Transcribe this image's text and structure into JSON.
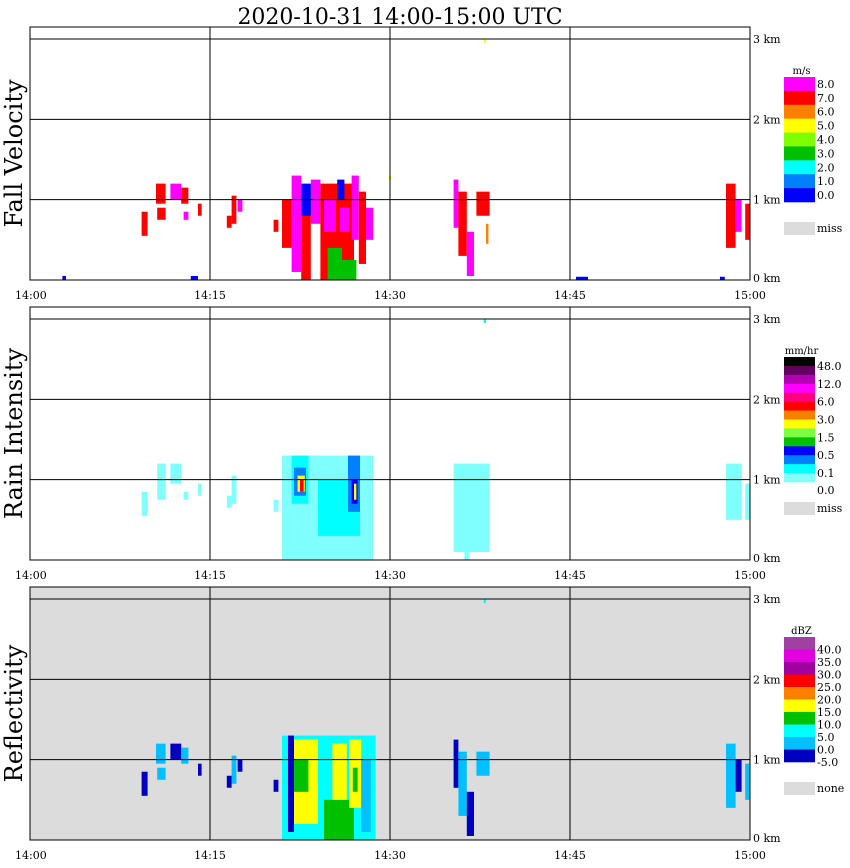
{
  "chart_data": {
    "type": "heatmap",
    "title": "2020-10-31   14:00-15:00 UTC",
    "x_ticks": [
      "14:00",
      "14:15",
      "14:30",
      "14:45",
      "15:00"
    ],
    "x_range_minutes": [
      0,
      60
    ],
    "y_ticks": [
      "0 km",
      "1 km",
      "2 km",
      "3 km"
    ],
    "y_range_km": [
      0,
      3.15
    ],
    "grid": true,
    "panels": [
      {
        "name": "fall-velocity",
        "ylabel": "Fall Velocity",
        "unit": "m/s",
        "background": "#ffffff",
        "legend_labels": [
          "8.0",
          "7.0",
          "6.0",
          "5.0",
          "4.0",
          "3.0",
          "2.0",
          "1.0",
          "0.0"
        ],
        "legend_colors": [
          "#ff00ff",
          "#ff0000",
          "#ff8000",
          "#ffff00",
          "#80ff00",
          "#00c000",
          "#00ffff",
          "#0080ff",
          "#0000ff"
        ],
        "missing_label": "miss",
        "cells": [
          [
            10.5,
            11.3,
            0.95,
            1.2,
            1
          ],
          [
            11.7,
            12.6,
            1.0,
            1.2,
            0
          ],
          [
            12.6,
            13.2,
            0.95,
            1.15,
            1
          ],
          [
            9.3,
            9.8,
            0.55,
            0.85,
            1
          ],
          [
            10.6,
            11.3,
            0.75,
            0.9,
            1
          ],
          [
            12.8,
            13.2,
            0.75,
            0.85,
            0
          ],
          [
            14.0,
            14.3,
            0.8,
            0.95,
            1
          ],
          [
            16.8,
            17.2,
            0.7,
            1.05,
            1
          ],
          [
            17.3,
            17.7,
            0.85,
            1.0,
            0
          ],
          [
            16.4,
            16.8,
            0.65,
            0.8,
            1
          ],
          [
            20.3,
            20.7,
            0.6,
            0.75,
            1
          ],
          [
            21.0,
            21.8,
            0.4,
            1.0,
            1
          ],
          [
            21.8,
            22.6,
            0.1,
            1.3,
            0
          ],
          [
            22.6,
            23.4,
            0.0,
            1.1,
            1
          ],
          [
            23.4,
            24.2,
            0.7,
            1.25,
            0
          ],
          [
            22.6,
            23.4,
            0.8,
            1.2,
            8
          ],
          [
            24.2,
            27.0,
            0.0,
            1.2,
            1
          ],
          [
            24.8,
            26.0,
            0.0,
            0.4,
            5
          ],
          [
            26.0,
            27.2,
            0.0,
            0.25,
            5
          ],
          [
            24.5,
            25.5,
            0.6,
            1.0,
            0
          ],
          [
            25.8,
            26.6,
            0.6,
            0.9,
            0
          ],
          [
            26.8,
            27.4,
            0.5,
            1.3,
            0
          ],
          [
            27.4,
            28.0,
            0.2,
            1.1,
            1
          ],
          [
            28.0,
            28.6,
            0.5,
            0.9,
            0
          ],
          [
            25.6,
            26.2,
            1.0,
            1.25,
            8
          ],
          [
            29.9,
            30.1,
            1.25,
            1.3,
            3
          ],
          [
            35.3,
            35.7,
            0.65,
            1.25,
            0
          ],
          [
            35.7,
            36.4,
            0.3,
            1.1,
            1
          ],
          [
            36.4,
            37.0,
            0.05,
            0.6,
            0
          ],
          [
            37.2,
            38.3,
            0.8,
            1.1,
            1
          ],
          [
            38.0,
            38.2,
            0.45,
            0.7,
            2
          ],
          [
            37.8,
            38.0,
            2.95,
            3.0,
            3
          ],
          [
            58.0,
            58.8,
            0.4,
            1.2,
            1
          ],
          [
            58.8,
            59.3,
            0.6,
            1.0,
            0
          ],
          [
            59.6,
            60.0,
            0.5,
            0.95,
            1
          ],
          [
            2.7,
            3.0,
            0.0,
            0.05,
            8
          ],
          [
            13.4,
            14.0,
            0.0,
            0.05,
            8
          ],
          [
            45.5,
            46.5,
            0.0,
            0.04,
            8
          ],
          [
            57.5,
            57.9,
            0.0,
            0.04,
            8
          ]
        ]
      },
      {
        "name": "rain-intensity",
        "ylabel": "Rain Intensity",
        "unit": "mm/hr",
        "background": "#ffffff",
        "legend_labels": [
          "48.0",
          "12.0",
          "6.0",
          "3.0",
          "1.5",
          "0.5",
          "0.1",
          "0.0"
        ],
        "legend_colors": [
          "#000000",
          "#600060",
          "#b000b0",
          "#ff00ff",
          "#ff0080",
          "#ff0000",
          "#ff8000",
          "#ffff00",
          "#80ff40",
          "#00c000",
          "#0000ff",
          "#0080ff",
          "#00ffff",
          "#80ffff"
        ],
        "missing_label": "miss",
        "cells": [
          [
            9.3,
            9.8,
            0.55,
            0.85,
            13
          ],
          [
            10.6,
            11.3,
            0.75,
            1.2,
            13
          ],
          [
            11.7,
            12.6,
            0.95,
            1.2,
            13
          ],
          [
            12.8,
            13.2,
            0.75,
            0.85,
            13
          ],
          [
            14.0,
            14.3,
            0.8,
            0.95,
            13
          ],
          [
            16.8,
            17.2,
            0.7,
            1.05,
            13
          ],
          [
            16.4,
            16.8,
            0.65,
            0.8,
            13
          ],
          [
            20.3,
            20.7,
            0.6,
            0.75,
            13
          ],
          [
            21.0,
            28.6,
            0.0,
            1.3,
            13
          ],
          [
            21.8,
            23.2,
            0.7,
            1.3,
            12
          ],
          [
            22.0,
            23.0,
            0.8,
            1.15,
            11
          ],
          [
            22.3,
            22.9,
            0.85,
            1.05,
            7
          ],
          [
            22.5,
            22.8,
            0.85,
            1.0,
            5
          ],
          [
            24.0,
            27.5,
            0.3,
            1.0,
            12
          ],
          [
            26.5,
            27.5,
            0.6,
            1.3,
            11
          ],
          [
            26.8,
            27.3,
            0.7,
            1.0,
            10
          ],
          [
            27.0,
            27.2,
            0.75,
            0.95,
            7
          ],
          [
            35.3,
            38.3,
            0.1,
            1.2,
            13
          ],
          [
            36.2,
            36.6,
            0.0,
            0.15,
            13
          ],
          [
            37.8,
            38.0,
            2.95,
            3.0,
            12
          ],
          [
            58.0,
            59.3,
            0.5,
            1.2,
            13
          ],
          [
            59.6,
            60.0,
            0.5,
            0.95,
            13
          ]
        ]
      },
      {
        "name": "reflectivity",
        "ylabel": "Reflectivity",
        "unit": "dBZ",
        "background": "#dcdcdc",
        "legend_labels": [
          "40.0",
          "35.0",
          "30.0",
          "25.0",
          "20.0",
          "15.0",
          "10.0",
          "5.0",
          "0.0",
          "-5.0"
        ],
        "legend_colors": [
          "#a040a0",
          "#e000e0",
          "#a000a0",
          "#ff0000",
          "#ff8000",
          "#ffff00",
          "#00c000",
          "#00ffff",
          "#00c0ff",
          "#0000c0"
        ],
        "missing_label": "none",
        "cells": [
          [
            10.5,
            11.3,
            0.95,
            1.2,
            8
          ],
          [
            11.7,
            12.6,
            1.0,
            1.2,
            9
          ],
          [
            12.6,
            13.2,
            0.95,
            1.15,
            8
          ],
          [
            9.3,
            9.8,
            0.55,
            0.85,
            9
          ],
          [
            10.6,
            11.3,
            0.75,
            0.9,
            8
          ],
          [
            14.0,
            14.3,
            0.8,
            0.95,
            9
          ],
          [
            16.8,
            17.2,
            0.7,
            1.05,
            8
          ],
          [
            17.3,
            17.7,
            0.85,
            1.0,
            9
          ],
          [
            16.4,
            16.8,
            0.65,
            0.8,
            9
          ],
          [
            20.3,
            20.7,
            0.6,
            0.75,
            9
          ],
          [
            21.0,
            28.8,
            0.0,
            1.3,
            7
          ],
          [
            21.8,
            24.0,
            0.2,
            1.25,
            5
          ],
          [
            22.0,
            23.2,
            0.6,
            1.0,
            6
          ],
          [
            24.5,
            27.0,
            0.0,
            0.5,
            6
          ],
          [
            25.2,
            26.4,
            0.5,
            1.2,
            5
          ],
          [
            26.6,
            27.6,
            0.4,
            1.25,
            5
          ],
          [
            26.9,
            27.3,
            0.6,
            0.9,
            6
          ],
          [
            27.6,
            28.4,
            0.1,
            1.0,
            8
          ],
          [
            21.5,
            22.0,
            0.1,
            1.3,
            9
          ],
          [
            35.3,
            35.7,
            0.65,
            1.25,
            9
          ],
          [
            35.7,
            36.4,
            0.3,
            1.1,
            8
          ],
          [
            36.4,
            37.0,
            0.05,
            0.6,
            9
          ],
          [
            37.2,
            38.3,
            0.8,
            1.1,
            8
          ],
          [
            37.8,
            38.0,
            2.95,
            3.0,
            7
          ],
          [
            58.0,
            58.8,
            0.4,
            1.2,
            8
          ],
          [
            58.8,
            59.3,
            0.6,
            1.0,
            9
          ],
          [
            59.6,
            60.0,
            0.5,
            0.95,
            8
          ]
        ]
      }
    ]
  }
}
